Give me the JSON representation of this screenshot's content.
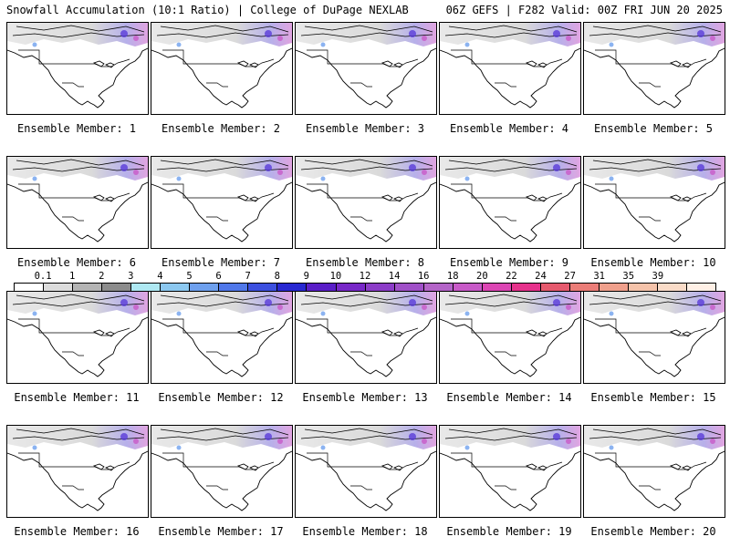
{
  "header": {
    "left": "Snowfall Accumulation (10:1 Ratio) | College of DuPage NEXLAB",
    "right": "06Z GEFS | F282 Valid: 00Z FRI JUN 20 2025"
  },
  "panels": [
    {
      "label": "Ensemble Member: 1"
    },
    {
      "label": "Ensemble Member: 2"
    },
    {
      "label": "Ensemble Member: 3"
    },
    {
      "label": "Ensemble Member: 4"
    },
    {
      "label": "Ensemble Member: 5"
    },
    {
      "label": "Ensemble Member: 6"
    },
    {
      "label": "Ensemble Member: 7"
    },
    {
      "label": "Ensemble Member: 8"
    },
    {
      "label": "Ensemble Member: 9"
    },
    {
      "label": "Ensemble Member: 10"
    },
    {
      "label": "Ensemble Member: 11"
    },
    {
      "label": "Ensemble Member: 12"
    },
    {
      "label": "Ensemble Member: 13"
    },
    {
      "label": "Ensemble Member: 14"
    },
    {
      "label": "Ensemble Member: 15"
    },
    {
      "label": "Ensemble Member: 16"
    },
    {
      "label": "Ensemble Member: 17"
    },
    {
      "label": "Ensemble Member: 18"
    },
    {
      "label": "Ensemble Member: 19"
    },
    {
      "label": "Ensemble Member: 20"
    }
  ],
  "colorbar": {
    "labels": [
      "0.1",
      "1",
      "2",
      "3",
      "4",
      "5",
      "6",
      "7",
      "8",
      "9",
      "10",
      "12",
      "14",
      "16",
      "18",
      "20",
      "22",
      "24",
      "27",
      "31",
      "35",
      "39"
    ],
    "colors": [
      "#ffffff",
      "#dcdcdc",
      "#b4b4b4",
      "#8c8c8c",
      "#aee8f2",
      "#8cc8f0",
      "#6ea0ee",
      "#5078ea",
      "#3c50e0",
      "#2828d2",
      "#5a1ec8",
      "#7828c8",
      "#8c3cc8",
      "#a050c8",
      "#b464c8",
      "#c85ac8",
      "#dc46b4",
      "#e6328c",
      "#e65a6e",
      "#eb7d78",
      "#f0a08c",
      "#f5c3aa",
      "#fadcc8",
      "#fff0e6"
    ]
  }
}
